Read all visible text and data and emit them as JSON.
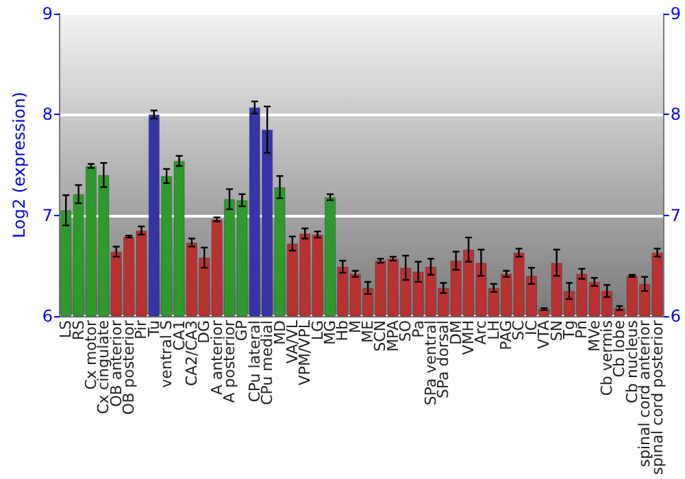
{
  "chart_data": {
    "type": "bar",
    "ylabel": "Log2 (expression)",
    "categories": [
      "LS",
      "RS",
      "Cx motor",
      "Cx cingulate",
      "OB anterior",
      "OB posterior",
      "Pir",
      "Tu",
      "ventral S",
      "CA1",
      "CA2/CA3",
      "DG",
      "A anterior",
      "A posterior",
      "GP",
      "CPu lateral",
      "CPu medial",
      "MD",
      "VA/VL",
      "VPM/VPL",
      "LG",
      "MG",
      "Hb",
      "M",
      "ME",
      "SCN",
      "MPA",
      "SO",
      "Pa",
      "SPa ventral",
      "SPa dorsal",
      "DM",
      "VMH",
      "Arc",
      "LH",
      "PAG",
      "SC",
      "IC",
      "VTA",
      "SN",
      "Tg",
      "Pn",
      "MVe",
      "Cb vermis",
      "Cb lobe",
      "Cb nucleus",
      "spinal cord anterior",
      "spinal cord posterior"
    ],
    "values": [
      7.05,
      7.21,
      7.49,
      7.4,
      6.64,
      6.79,
      6.85,
      8.0,
      7.39,
      7.54,
      6.73,
      6.58,
      6.96,
      7.16,
      7.15,
      8.07,
      7.85,
      7.28,
      6.72,
      6.82,
      6.81,
      7.18,
      6.49,
      6.42,
      6.28,
      6.55,
      6.57,
      6.48,
      6.44,
      6.49,
      6.28,
      6.55,
      6.66,
      6.53,
      6.28,
      6.42,
      6.63,
      6.4,
      6.07,
      6.53,
      6.25,
      6.42,
      6.34,
      6.25,
      6.08,
      6.4,
      6.32,
      6.63
    ],
    "errors": [
      0.15,
      0.09,
      0.02,
      0.12,
      0.05,
      0.01,
      0.04,
      0.04,
      0.07,
      0.05,
      0.04,
      0.1,
      0.02,
      0.1,
      0.06,
      0.06,
      0.23,
      0.11,
      0.07,
      0.05,
      0.03,
      0.03,
      0.06,
      0.03,
      0.06,
      0.02,
      0.02,
      0.12,
      0.1,
      0.08,
      0.05,
      0.09,
      0.12,
      0.13,
      0.04,
      0.03,
      0.04,
      0.08,
      0.01,
      0.13,
      0.08,
      0.05,
      0.04,
      0.06,
      0.02,
      0.01,
      0.07,
      0.04
    ],
    "colors": [
      "#2e9a2e",
      "#2e9a2e",
      "#2e9a2e",
      "#2e9a2e",
      "#b83232",
      "#b83232",
      "#b83232",
      "#3535a8",
      "#2e9a2e",
      "#2e9a2e",
      "#b83232",
      "#b83232",
      "#b83232",
      "#2e9a2e",
      "#2e9a2e",
      "#3535a8",
      "#3535a8",
      "#2e9a2e",
      "#b83232",
      "#b83232",
      "#b83232",
      "#2e9a2e",
      "#b83232",
      "#b83232",
      "#b83232",
      "#b83232",
      "#b83232",
      "#b83232",
      "#b83232",
      "#b83232",
      "#b83232",
      "#b83232",
      "#b83232",
      "#b83232",
      "#b83232",
      "#b83232",
      "#b83232",
      "#b83232",
      "#b83232",
      "#b83232",
      "#b83232",
      "#b83232",
      "#b83232",
      "#b83232",
      "#b83232",
      "#b83232",
      "#b83232",
      "#b83232"
    ],
    "ylim": [
      6,
      9
    ],
    "yticks": [
      6,
      7,
      8,
      9
    ],
    "y2lim": [
      6,
      9
    ],
    "y2ticks": [
      6,
      7,
      8,
      9
    ],
    "grid": "y"
  }
}
